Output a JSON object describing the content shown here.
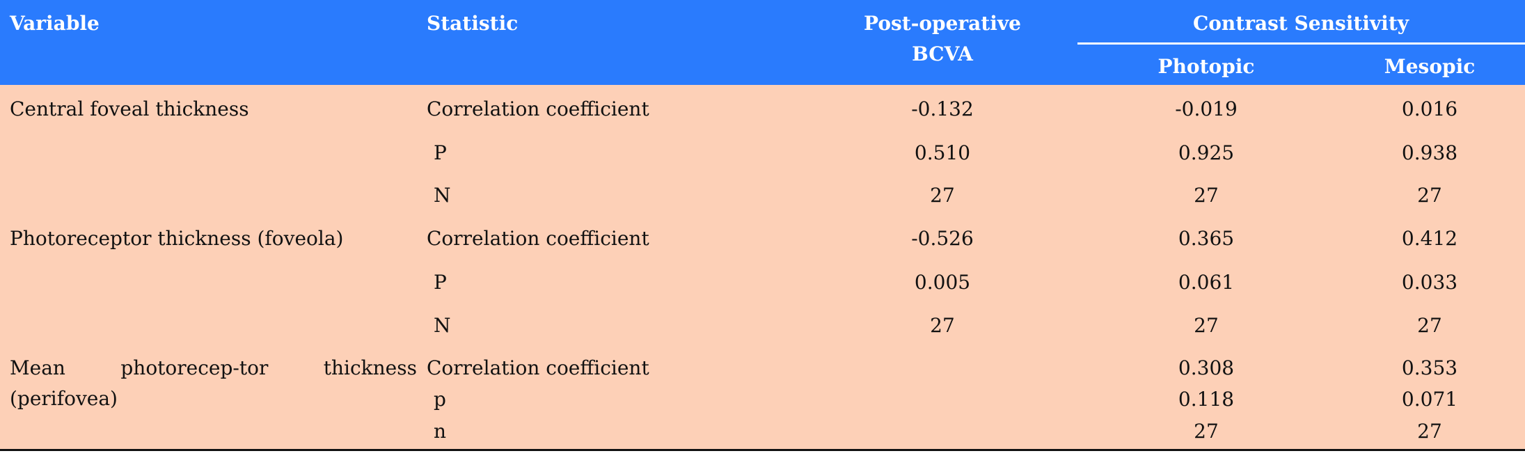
{
  "header": {
    "variable": "Variable",
    "statistic": "Statistic",
    "bcva": "Post-operative BCVA",
    "group": "Contrast Sensitivity",
    "photopic": "Photopic",
    "mesopic": "Mesopic"
  },
  "groups": [
    {
      "variable": "Central foveal thickness",
      "rows": [
        {
          "statistic": "Correlation coefficient",
          "bcva": "-0.132",
          "photopic": "-0.019",
          "mesopic": "0.016"
        },
        {
          "statistic": "P",
          "bcva": "0.510",
          "photopic": "0.925",
          "mesopic": "0.938"
        },
        {
          "statistic": "N",
          "bcva": "27",
          "photopic": "27",
          "mesopic": "27"
        }
      ]
    },
    {
      "variable": "Photoreceptor thickness (foveola)",
      "rows": [
        {
          "statistic": "Correlation coefficient",
          "bcva": "-0.526",
          "photopic": "0.365",
          "mesopic": "0.412"
        },
        {
          "statistic": "P",
          "bcva": "0.005",
          "photopic": "0.061",
          "mesopic": "0.033"
        },
        {
          "statistic": "N",
          "bcva": "27",
          "photopic": "27",
          "mesopic": "27"
        }
      ]
    },
    {
      "variable": "Mean photorecep-tor thickness (perifovea)",
      "rows": [
        {
          "statistic": "Correlation coefficient",
          "photopic": "0.308",
          "mesopic": "0.353"
        },
        {
          "statistic": "p",
          "photopic": "0.118",
          "mesopic": "0.071"
        },
        {
          "statistic": "n",
          "photopic": "27",
          "mesopic": "27"
        }
      ]
    }
  ]
}
